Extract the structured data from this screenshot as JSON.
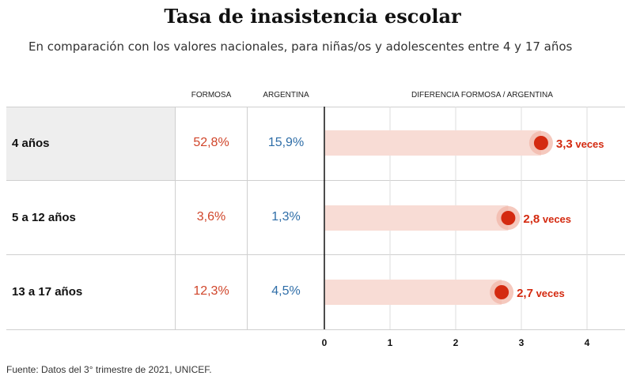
{
  "title": "Tasa de inasistencia escolar",
  "subtitle": "En comparación con los valores nacionales, para niñas/os y adolescentes entre 4 y 17 años",
  "headers": {
    "formosa": "FORMOSA",
    "argentina": "ARGENTINA",
    "diferencia": "DIFERENCIA FORMOSA / ARGENTINA"
  },
  "rows": [
    {
      "label": "4 años",
      "formosa": "52,8%",
      "argentina": "15,9%",
      "ratio_label": "3,3 veces"
    },
    {
      "label": "5 a 12 años",
      "formosa": "3,6%",
      "argentina": "1,3%",
      "ratio_label": "2,8 veces"
    },
    {
      "label": "13 a 17 años",
      "formosa": "12,3%",
      "argentina": "4,5%",
      "ratio_label": "2,7 veces"
    }
  ],
  "source": "Fuente: Datos del 3° trimestre de 2021, UNICEF.",
  "colors": {
    "formosa": "#d0452a",
    "argentina": "#2f6ea8",
    "dot": "#d42a10",
    "bar": "#f8dcd5",
    "highlight_row": "#eeeeee"
  },
  "chart_data": {
    "type": "bar",
    "categories": [
      "4 años",
      "5 a 12 años",
      "13 a 17 años"
    ],
    "values": [
      3.3,
      2.8,
      2.7
    ],
    "table": {
      "FORMOSA": [
        52.8,
        3.6,
        12.3
      ],
      "ARGENTINA": [
        15.9,
        1.3,
        4.5
      ]
    },
    "title": "Tasa de inasistencia escolar",
    "xlabel": "DIFERENCIA FORMOSA / ARGENTINA",
    "xlim": [
      0,
      4
    ],
    "xticks": [
      "0",
      "1",
      "2",
      "3",
      "4"
    ],
    "grid": true
  }
}
